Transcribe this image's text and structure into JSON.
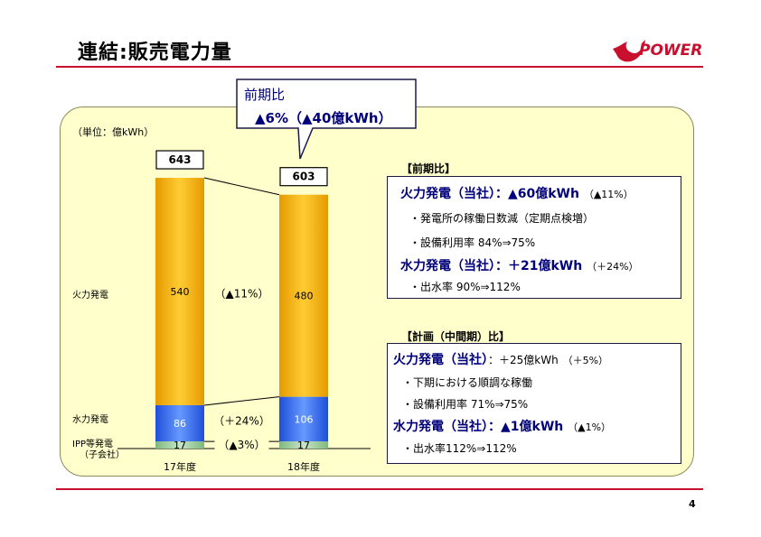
{
  "page_title": "連結:販売電力量",
  "logo_text": "POWER",
  "page_number": "4",
  "unit_label": "（単位：億kWh）",
  "callout": {
    "line1": "前期比",
    "line2": "▲6%（▲40億kWh）"
  },
  "chart_data": {
    "type": "bar",
    "stacked": true,
    "categories": [
      "17年度",
      "18年度"
    ],
    "series": [
      {
        "name": "IPP等発電（子会社）",
        "values": [
          17,
          17
        ],
        "color": "#99cc99"
      },
      {
        "name": "水力発電",
        "values": [
          86,
          106
        ],
        "color": "#3366ff"
      },
      {
        "name": "火力発電",
        "values": [
          540,
          480
        ],
        "color": "#ffaa00"
      }
    ],
    "totals": [
      "643",
      "603"
    ],
    "segment_labels": [
      [
        "17",
        "86",
        "540"
      ],
      [
        "17",
        "106",
        "480"
      ]
    ],
    "change_labels": [
      "（▲3%）",
      "（＋24%）",
      "（▲11%）"
    ],
    "series_labels": [
      "IPP等発電",
      "（子会社）",
      "水力発電",
      "火力発電"
    ]
  },
  "box1": {
    "header": "【前期比】",
    "h1_main": "火力発電（当社）：▲60億kWh",
    "h1_small": "（▲11%）",
    "i1": "・発電所の稼働日数減（定期点検増）",
    "i2": "・設備利用率 84%⇒75%",
    "h2_main": "水力発電（当社）：＋21億kWh",
    "h2_small": "（＋24%）",
    "i3": "・出水率 90%⇒112%"
  },
  "box2": {
    "header": "【計画（中間期）比】",
    "h1_main": "火力発電（当社）",
    "h1_val": "：＋25億kWh",
    "h1_small": "（＋5%）",
    "i1": "・下期における順調な稼働",
    "i2": "・設備利用率 71%⇒75%",
    "h2_main": "水力発電（当社）：▲1億kWh",
    "h2_small": "（▲1%）",
    "i3": "・出水率112%⇒112%"
  }
}
